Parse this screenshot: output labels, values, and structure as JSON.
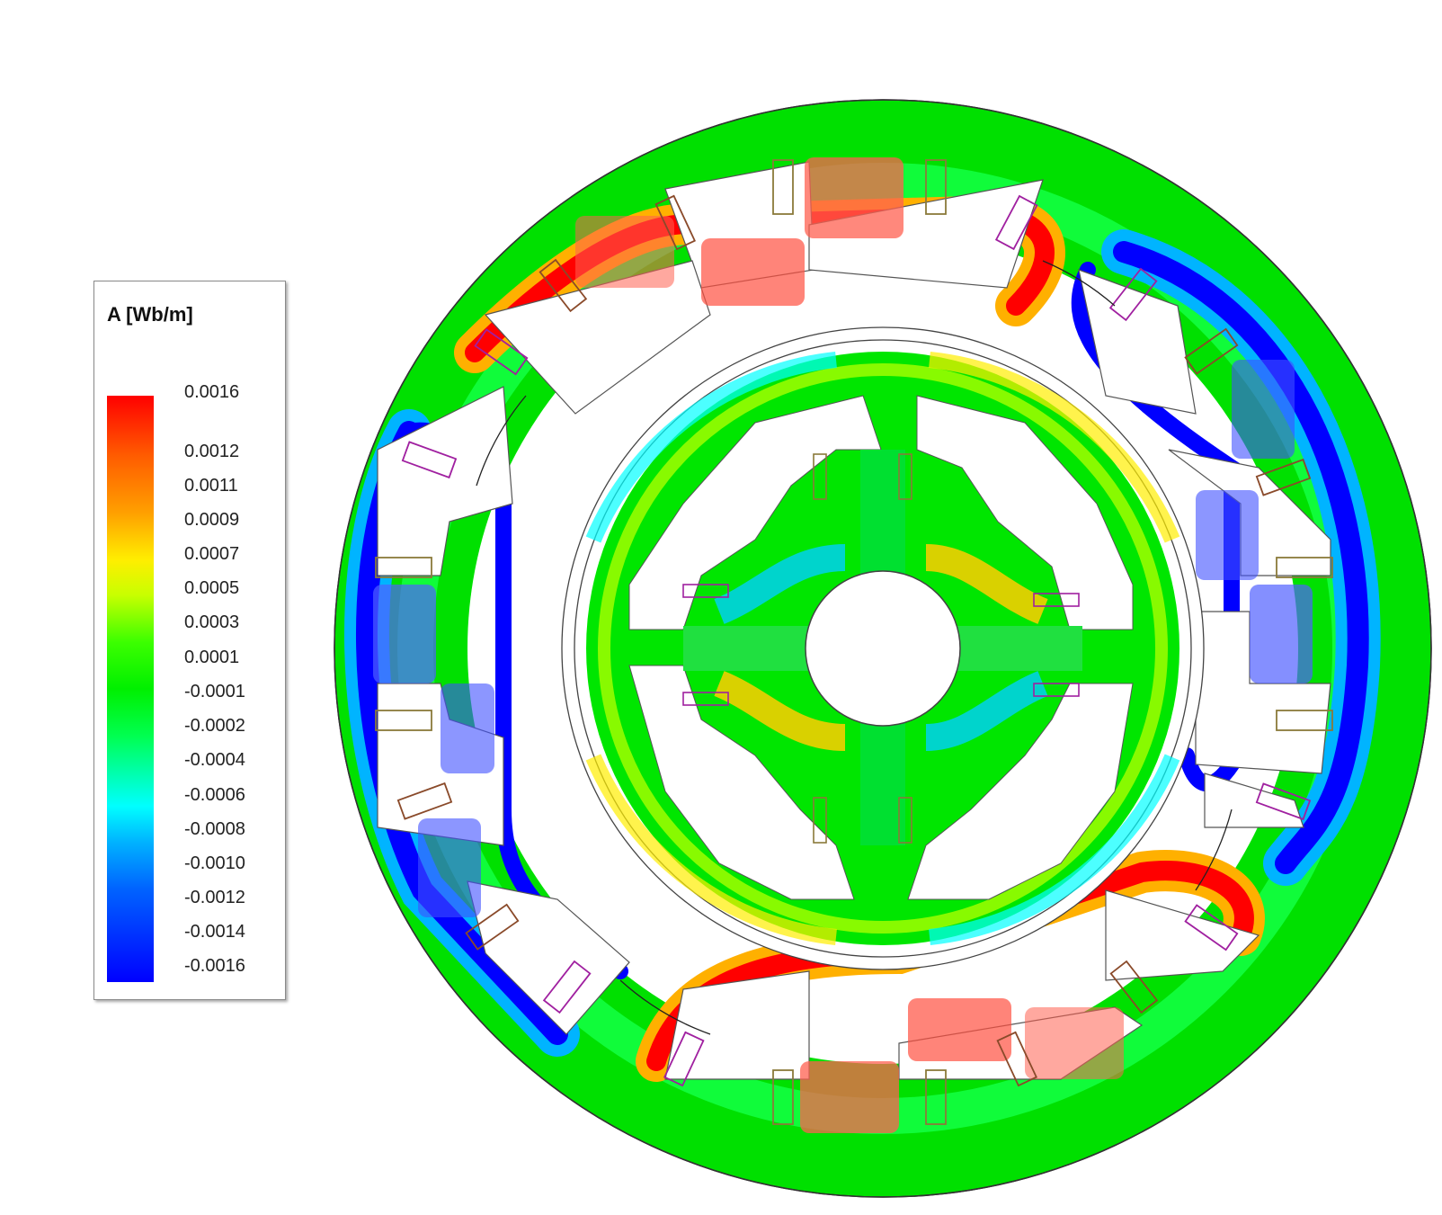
{
  "legend": {
    "title": "A [Wb/m]",
    "labels": [
      "0.0016",
      "0.0012",
      "0.0011",
      "0.0009",
      "0.0007",
      "0.0005",
      "0.0003",
      "0.0001",
      "-0.0001",
      "-0.0002",
      "-0.0004",
      "-0.0006",
      "-0.0008",
      "-0.0010",
      "-0.0012",
      "-0.0014",
      "-0.0016"
    ]
  },
  "colors": {
    "max": "#ff0000",
    "orange": "#ff8c00",
    "yellow": "#ffee00",
    "green": "#00e600",
    "cyan": "#00ffff",
    "blue": "#0000ff",
    "min": "#0000ff"
  }
}
